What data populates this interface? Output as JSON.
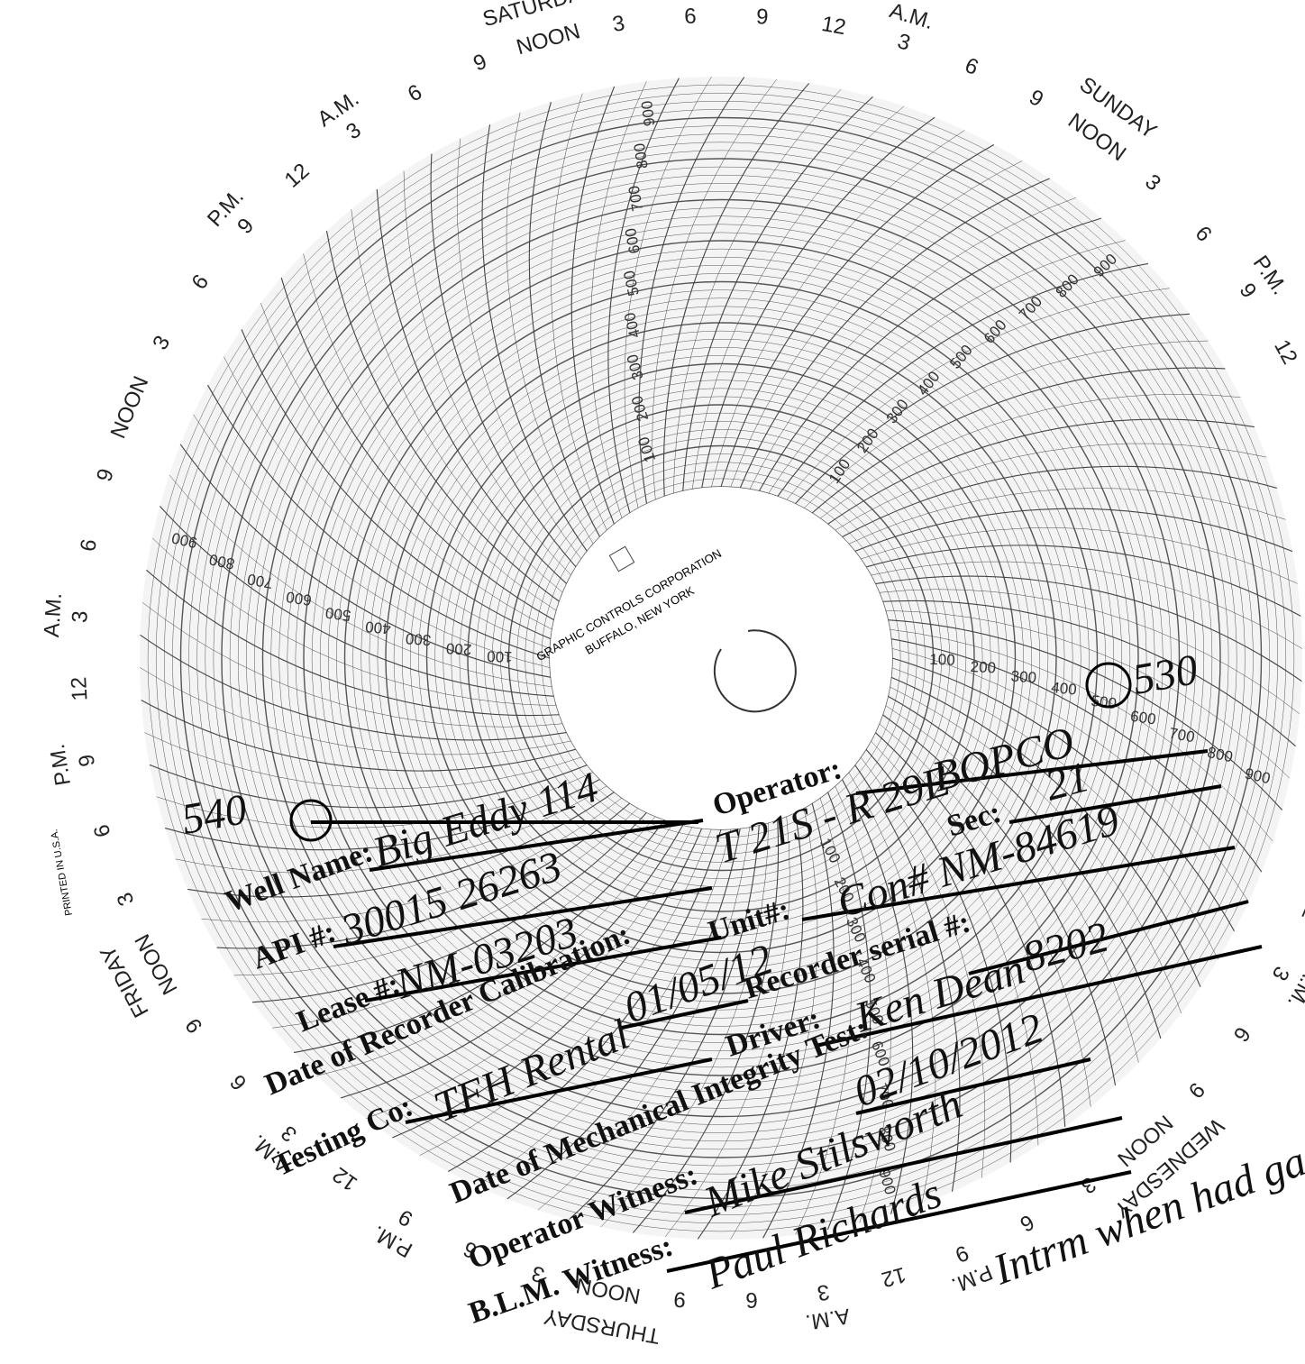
{
  "chart_paper": {
    "days": [
      "SATURDAY",
      "SUNDAY",
      "THURSDAY",
      "FRIDAY",
      "WEDNESDAY"
    ],
    "hour_labels": [
      "NOON",
      "3",
      "6",
      "9",
      "12",
      "3",
      "6",
      "9"
    ],
    "am": "A.M.",
    "pm": "P.M.",
    "scale_labels": [
      100,
      200,
      300,
      400,
      500,
      600,
      700,
      800,
      900
    ],
    "maker": "GRAPHIC CONTROLS CORPORATION",
    "city": "BUFFALO, NEW YORK",
    "printed": "PRINTED IN U.S.A."
  },
  "form": {
    "fields": [
      {
        "label": "Operator:",
        "value": "BOPCO"
      },
      {
        "label": "Well Name:",
        "value": "Big Eddy 114"
      },
      {
        "label": "Sec:",
        "value": "21"
      },
      {
        "label": "API #:",
        "value": "30015 26263"
      },
      {
        "label": "Unit#:",
        "value": "Con# NM-84619"
      },
      {
        "label": "Lease #:",
        "value": "NM-03203"
      },
      {
        "label": "Recorder serial #:",
        "value": "8202"
      },
      {
        "label": "Date of Recorder Calibration:",
        "value": "01/05/12"
      },
      {
        "label": "Driver:",
        "value": "Ken Dean"
      },
      {
        "label": "Testing Co:",
        "value": "TFH Rental"
      },
      {
        "label": "Date of Mechanical Integrity Test:",
        "value": "02/10/2012"
      },
      {
        "label": "Operator Witness:",
        "value": "Mike Stilsworth"
      },
      {
        "label": "B.L.M. Witness:",
        "value": "Paul Richards"
      }
    ],
    "township_range": "T 21S - R 29E"
  },
  "annotations": [
    "540",
    "530",
    "Intrm when had gas"
  ]
}
